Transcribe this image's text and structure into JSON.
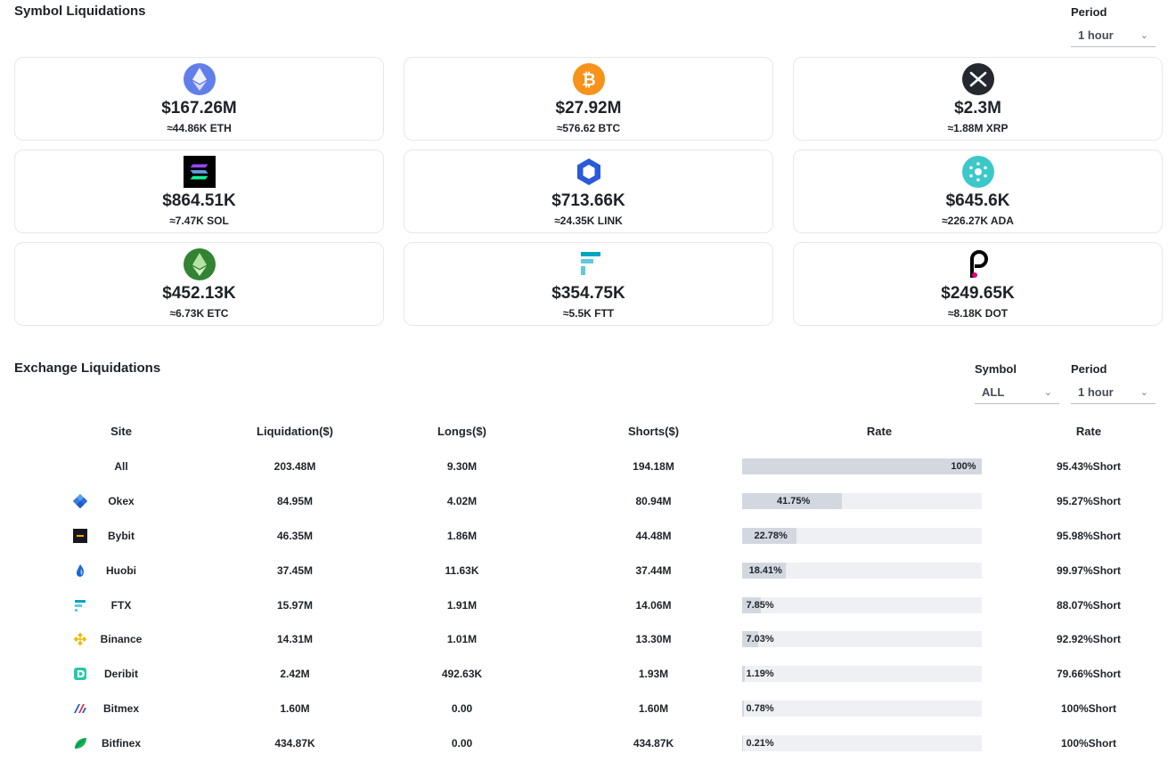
{
  "symbol_section": {
    "title": "Symbol Liquidations",
    "period_label": "Period",
    "period_value": "1 hour"
  },
  "cards": [
    {
      "icon": "eth-icon",
      "usd": "$167.26M",
      "amount": "≈44.86K ETH"
    },
    {
      "icon": "btc-icon",
      "usd": "$27.92M",
      "amount": "≈576.62 BTC"
    },
    {
      "icon": "xrp-icon",
      "usd": "$2.3M",
      "amount": "≈1.88M XRP"
    },
    {
      "icon": "sol-icon",
      "usd": "$864.51K",
      "amount": "≈7.47K SOL"
    },
    {
      "icon": "link-icon",
      "usd": "$713.66K",
      "amount": "≈24.35K LINK"
    },
    {
      "icon": "ada-icon",
      "usd": "$645.6K",
      "amount": "≈226.27K ADA"
    },
    {
      "icon": "etc-icon",
      "usd": "$452.13K",
      "amount": "≈6.73K ETC"
    },
    {
      "icon": "ftt-icon",
      "usd": "$354.75K",
      "amount": "≈5.5K FTT"
    },
    {
      "icon": "dot-icon",
      "usd": "$249.65K",
      "amount": "≈8.18K DOT"
    }
  ],
  "exchange_section": {
    "title": "Exchange Liquidations",
    "symbol_label": "Symbol",
    "symbol_value": "ALL",
    "period_label": "Period",
    "period_value": "1 hour"
  },
  "table": {
    "headers": [
      "Site",
      "Liquidation($)",
      "Longs($)",
      "Shorts($)",
      "Rate",
      "Rate"
    ],
    "rows": [
      {
        "site": "All",
        "icon": "",
        "liquidation": "203.48M",
        "longs": "9.30M",
        "shorts": "194.18M",
        "rate_pct": 100,
        "rate_text": "100%",
        "short_rate": "95.43%Short"
      },
      {
        "site": "Okex",
        "icon": "okex-icon",
        "liquidation": "84.95M",
        "longs": "4.02M",
        "shorts": "80.94M",
        "rate_pct": 41.75,
        "rate_text": "41.75%",
        "short_rate": "95.27%Short"
      },
      {
        "site": "Bybit",
        "icon": "bybit-icon",
        "liquidation": "46.35M",
        "longs": "1.86M",
        "shorts": "44.48M",
        "rate_pct": 22.78,
        "rate_text": "22.78%",
        "short_rate": "95.98%Short"
      },
      {
        "site": "Huobi",
        "icon": "huobi-icon",
        "liquidation": "37.45M",
        "longs": "11.63K",
        "shorts": "37.44M",
        "rate_pct": 18.41,
        "rate_text": "18.41%",
        "short_rate": "99.97%Short"
      },
      {
        "site": "FTX",
        "icon": "ftx-icon",
        "liquidation": "15.97M",
        "longs": "1.91M",
        "shorts": "14.06M",
        "rate_pct": 7.85,
        "rate_text": "7.85%",
        "short_rate": "88.07%Short"
      },
      {
        "site": "Binance",
        "icon": "binance-icon",
        "liquidation": "14.31M",
        "longs": "1.01M",
        "shorts": "13.30M",
        "rate_pct": 7.03,
        "rate_text": "7.03%",
        "short_rate": "92.92%Short"
      },
      {
        "site": "Deribit",
        "icon": "deribit-icon",
        "liquidation": "2.42M",
        "longs": "492.63K",
        "shorts": "1.93M",
        "rate_pct": 1.19,
        "rate_text": "1.19%",
        "short_rate": "79.66%Short"
      },
      {
        "site": "Bitmex",
        "icon": "bitmex-icon",
        "liquidation": "1.60M",
        "longs": "0.00",
        "shorts": "1.60M",
        "rate_pct": 0.78,
        "rate_text": "0.78%",
        "short_rate": "100%Short"
      },
      {
        "site": "Bitfinex",
        "icon": "bitfinex-icon",
        "liquidation": "434.87K",
        "longs": "0.00",
        "shorts": "434.87K",
        "rate_pct": 0.21,
        "rate_text": "0.21%",
        "short_rate": "100%Short"
      }
    ]
  },
  "colors": {
    "short": "#f6465d",
    "bar_fill": "#d3d8e0",
    "bar_track": "#eef0f3"
  }
}
